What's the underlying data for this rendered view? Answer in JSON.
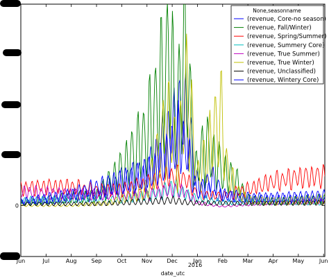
{
  "chart_data": {
    "type": "line",
    "title": "",
    "xlabel": "date_utc",
    "ylabel": "",
    "x_ticks": [
      "Jun",
      "Jul",
      "Aug",
      "Sep",
      "Oct",
      "Nov",
      "Dec",
      "Jan",
      "Feb",
      "Mar",
      "Apr",
      "May",
      "Jun"
    ],
    "x_secondary_label": "2016",
    "y_ticks": [
      "0"
    ],
    "ylim": [
      -0.95,
      3.75
    ],
    "grid": false,
    "legend": {
      "title": "None,seasonname",
      "placement": "top-right"
    },
    "x_units": "months since June 2015",
    "xlim": [
      0,
      12.05
    ],
    "series": [
      {
        "name": "(revenue, Core-no season)",
        "color": "#0000ff",
        "peaks": [
          [
            0,
            0.05
          ],
          [
            1.5,
            0.1
          ],
          [
            2,
            0.2
          ],
          [
            3,
            0.18
          ],
          [
            4,
            0.45
          ],
          [
            5,
            0.6
          ],
          [
            6,
            1.4
          ],
          [
            6.5,
            1.8
          ],
          [
            7,
            0.4
          ],
          [
            7.7,
            0.2
          ],
          [
            9,
            0.12
          ],
          [
            10,
            0.12
          ],
          [
            11,
            0.12
          ],
          [
            12,
            0.12
          ]
        ],
        "amp": 0.45,
        "phase": 0.0
      },
      {
        "name": "(revenue, Fall/Winter)",
        "color": "#008000",
        "peaks": [
          [
            0,
            0.05
          ],
          [
            2,
            0.15
          ],
          [
            3,
            0.18
          ],
          [
            4,
            0.65
          ],
          [
            5,
            1.3
          ],
          [
            5.9,
            2.7
          ],
          [
            6.2,
            1.6
          ],
          [
            6.5,
            3.0
          ],
          [
            6.9,
            0.6
          ],
          [
            7.3,
            1.1
          ],
          [
            8,
            0.65
          ],
          [
            8.6,
            0.4
          ],
          [
            9,
            0.12
          ],
          [
            10,
            0.08
          ],
          [
            11,
            0.1
          ],
          [
            12,
            0.12
          ]
        ],
        "amp": 0.55,
        "phase": 1.1
      },
      {
        "name": "(revenue, Spring/Summer)",
        "color": "#ff0000",
        "peaks": [
          [
            0,
            0.32
          ],
          [
            1,
            0.35
          ],
          [
            2,
            0.35
          ],
          [
            3,
            0.28
          ],
          [
            4,
            0.3
          ],
          [
            5,
            0.4
          ],
          [
            6,
            0.55
          ],
          [
            6.5,
            0.5
          ],
          [
            7,
            0.2
          ],
          [
            8,
            0.18
          ],
          [
            9,
            0.3
          ],
          [
            10,
            0.45
          ],
          [
            11,
            0.52
          ],
          [
            12,
            0.55
          ]
        ],
        "amp": 0.3,
        "phase": 2.2
      },
      {
        "name": "(revenue, Summery Core)",
        "color": "#00bfbf",
        "peaks": [
          [
            0,
            0.1
          ],
          [
            2,
            0.12
          ],
          [
            4,
            0.12
          ],
          [
            5.5,
            0.22
          ],
          [
            6,
            0.35
          ],
          [
            6.8,
            0.15
          ],
          [
            8,
            0.06
          ],
          [
            10,
            0.06
          ],
          [
            12,
            0.05
          ]
        ],
        "amp": 0.4,
        "phase": 3.3
      },
      {
        "name": "(revenue, True Summer)",
        "color": "#bf00bf",
        "peaks": [
          [
            0,
            0.25
          ],
          [
            2,
            0.22
          ],
          [
            4,
            0.18
          ],
          [
            5,
            0.2
          ],
          [
            6,
            0.3
          ],
          [
            6.5,
            0.25
          ],
          [
            7,
            0.05
          ],
          [
            8,
            -0.02
          ],
          [
            9,
            0.02
          ],
          [
            10,
            0.05
          ],
          [
            12,
            0.08
          ]
        ],
        "amp": 0.35,
        "phase": 4.4
      },
      {
        "name": "(revenue, True Winter)",
        "color": "#bfbf00",
        "peaks": [
          [
            0,
            0.0
          ],
          [
            2,
            0.0
          ],
          [
            3.5,
            0.05
          ],
          [
            5,
            0.3
          ],
          [
            5.9,
            1.6
          ],
          [
            6.2,
            0.8
          ],
          [
            6.6,
            2.2
          ],
          [
            7,
            0.5
          ],
          [
            7.5,
            1.1
          ],
          [
            7.9,
            1.7
          ],
          [
            8.2,
            0.6
          ],
          [
            8.6,
            0.25
          ],
          [
            9,
            0.1
          ],
          [
            10,
            0.08
          ],
          [
            12,
            0.1
          ]
        ],
        "amp": 0.55,
        "phase": 5.5
      },
      {
        "name": "(revenue, Unclassified)",
        "color": "#000000",
        "peaks": [
          [
            0,
            0.03
          ],
          [
            3,
            0.03
          ],
          [
            6,
            0.1
          ],
          [
            6.7,
            0.05
          ],
          [
            9,
            0.04
          ],
          [
            12,
            0.05
          ]
        ],
        "amp": 0.5,
        "phase": 0.7
      },
      {
        "name": "(revenue, Wintery Core)",
        "color": "#0000ff",
        "peaks": [
          [
            0,
            0.08
          ],
          [
            2,
            0.2
          ],
          [
            4,
            0.45
          ],
          [
            5,
            0.55
          ],
          [
            5.8,
            0.9
          ],
          [
            6.3,
            1.3
          ],
          [
            6.6,
            1.0
          ],
          [
            7,
            0.2
          ],
          [
            7.6,
            0.5
          ],
          [
            8,
            0.2
          ],
          [
            9,
            0.15
          ],
          [
            10,
            0.15
          ],
          [
            12,
            0.18
          ]
        ],
        "amp": 0.45,
        "phase": 1.8
      }
    ]
  }
}
